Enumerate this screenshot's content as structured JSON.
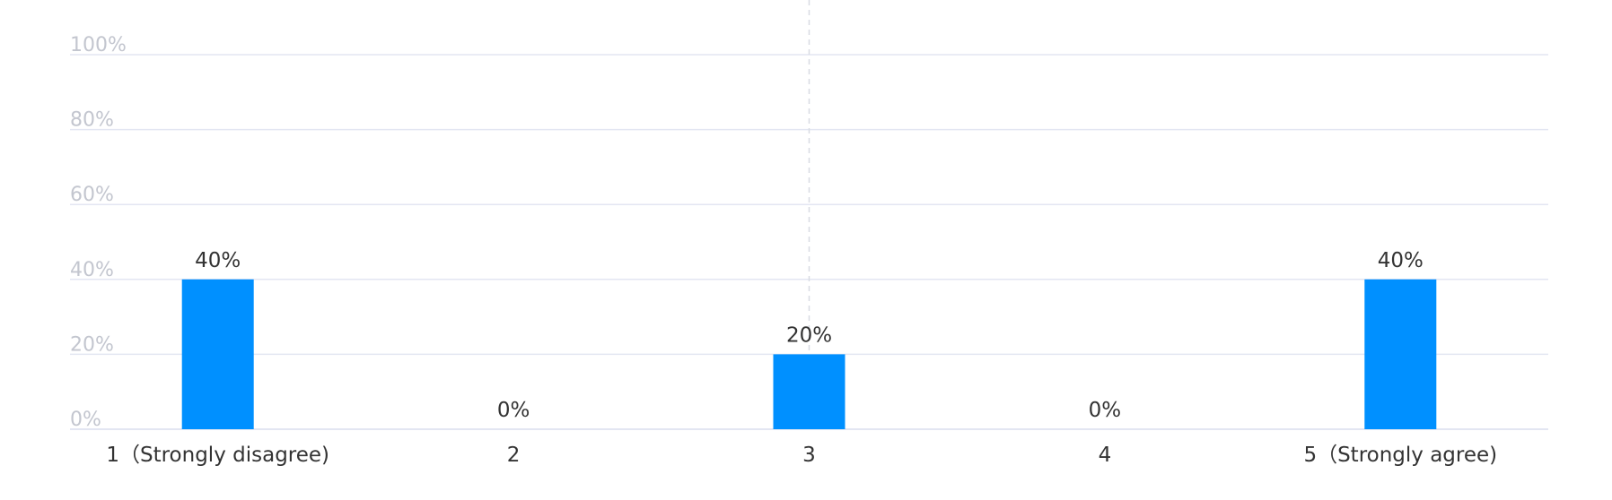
{
  "chart_data": {
    "type": "bar",
    "title": "",
    "xlabel": "",
    "ylabel": "",
    "ylim": [
      0,
      100
    ],
    "y_ticks": [
      "0%",
      "20%",
      "40%",
      "60%",
      "80%",
      "100%"
    ],
    "y_tick_values": [
      0,
      20,
      40,
      60,
      80,
      100
    ],
    "categories": [
      "1（Strongly disagree)",
      "2",
      "3",
      "4",
      "5（Strongly agree)"
    ],
    "values": [
      40,
      0,
      20,
      0,
      40
    ],
    "data_labels": [
      "40%",
      "0%",
      "20%",
      "0%",
      "40%"
    ],
    "grid": true,
    "legend": "none",
    "hover_category_index": 2,
    "colors": {
      "bar": "#0090ff",
      "grid": "#e3e6f2",
      "axis_text": "#c3c6cf",
      "label_text": "#333333"
    }
  }
}
